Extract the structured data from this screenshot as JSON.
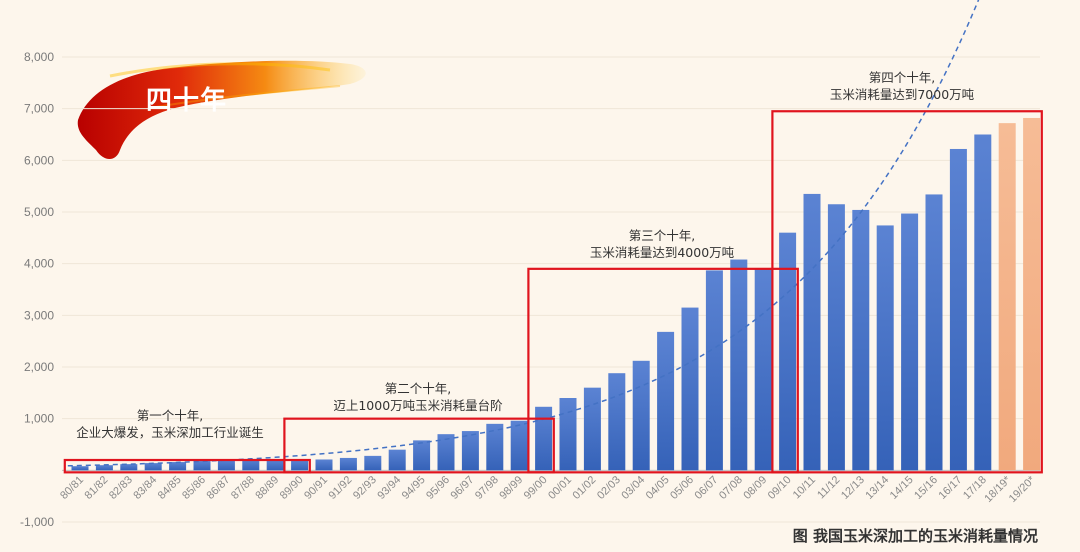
{
  "badge": "四十年",
  "caption": "图 我国玉米深加工的玉米消耗量情况",
  "colors": {
    "bar": "#4472c4",
    "bar_top": "#5b83d3",
    "forecast": "#f4b183",
    "box": "#e0141e",
    "trend": "#4472c4",
    "badge_dark": "#c00000",
    "badge_light": "#ffc000"
  },
  "annotations": [
    {
      "line1": "第一个十年,",
      "line2": "企业大爆发，玉米深加工行业诞生"
    },
    {
      "line1": "第二个十年,",
      "line2": "迈上1000万吨玉米消耗量台阶"
    },
    {
      "line1": "第三个十年,",
      "line2": "玉米消耗量达到4000万吨"
    },
    {
      "line1": "第四个十年,",
      "line2": "玉米消耗量达到7000万吨"
    }
  ],
  "chart_data": {
    "type": "bar",
    "title": "",
    "xlabel": "",
    "ylabel": "",
    "ylim": [
      -1000,
      8000
    ],
    "yticks": [
      "-1,000",
      "",
      "1,000",
      "2,000",
      "3,000",
      "4,000",
      "5,000",
      "6,000",
      "7,000",
      "8,000"
    ],
    "categories": [
      "80/81",
      "81/82",
      "82/83",
      "83/84",
      "84/85",
      "85/86",
      "86/87",
      "87/88",
      "88/89",
      "89/90",
      "90/91",
      "91/92",
      "92/93",
      "93/94",
      "94/95",
      "95/96",
      "96/97",
      "97/98",
      "98/99",
      "99/00",
      "00/01",
      "01/02",
      "02/03",
      "03/04",
      "04/05",
      "05/06",
      "06/07",
      "07/08",
      "08/09",
      "09/10",
      "10/11",
      "11/12",
      "12/13",
      "13/14",
      "14/15",
      "15/16",
      "16/17",
      "17/18",
      "18/19*",
      "19/20*"
    ],
    "series": [
      {
        "values": [
          80,
          100,
          120,
          140,
          160,
          180,
          200,
          220,
          200,
          190,
          210,
          240,
          280,
          400,
          580,
          700,
          760,
          900,
          960,
          1230,
          1400,
          1600,
          1880,
          2120,
          2680,
          3150,
          3870,
          4080,
          3900,
          4600,
          5350,
          5150,
          5040,
          4740,
          4970,
          5340,
          6220,
          6500,
          6720,
          6820
        ],
        "forecast_from_index": 38
      }
    ],
    "trend": "dashed exponential fit",
    "grid": true,
    "legend": "none"
  }
}
